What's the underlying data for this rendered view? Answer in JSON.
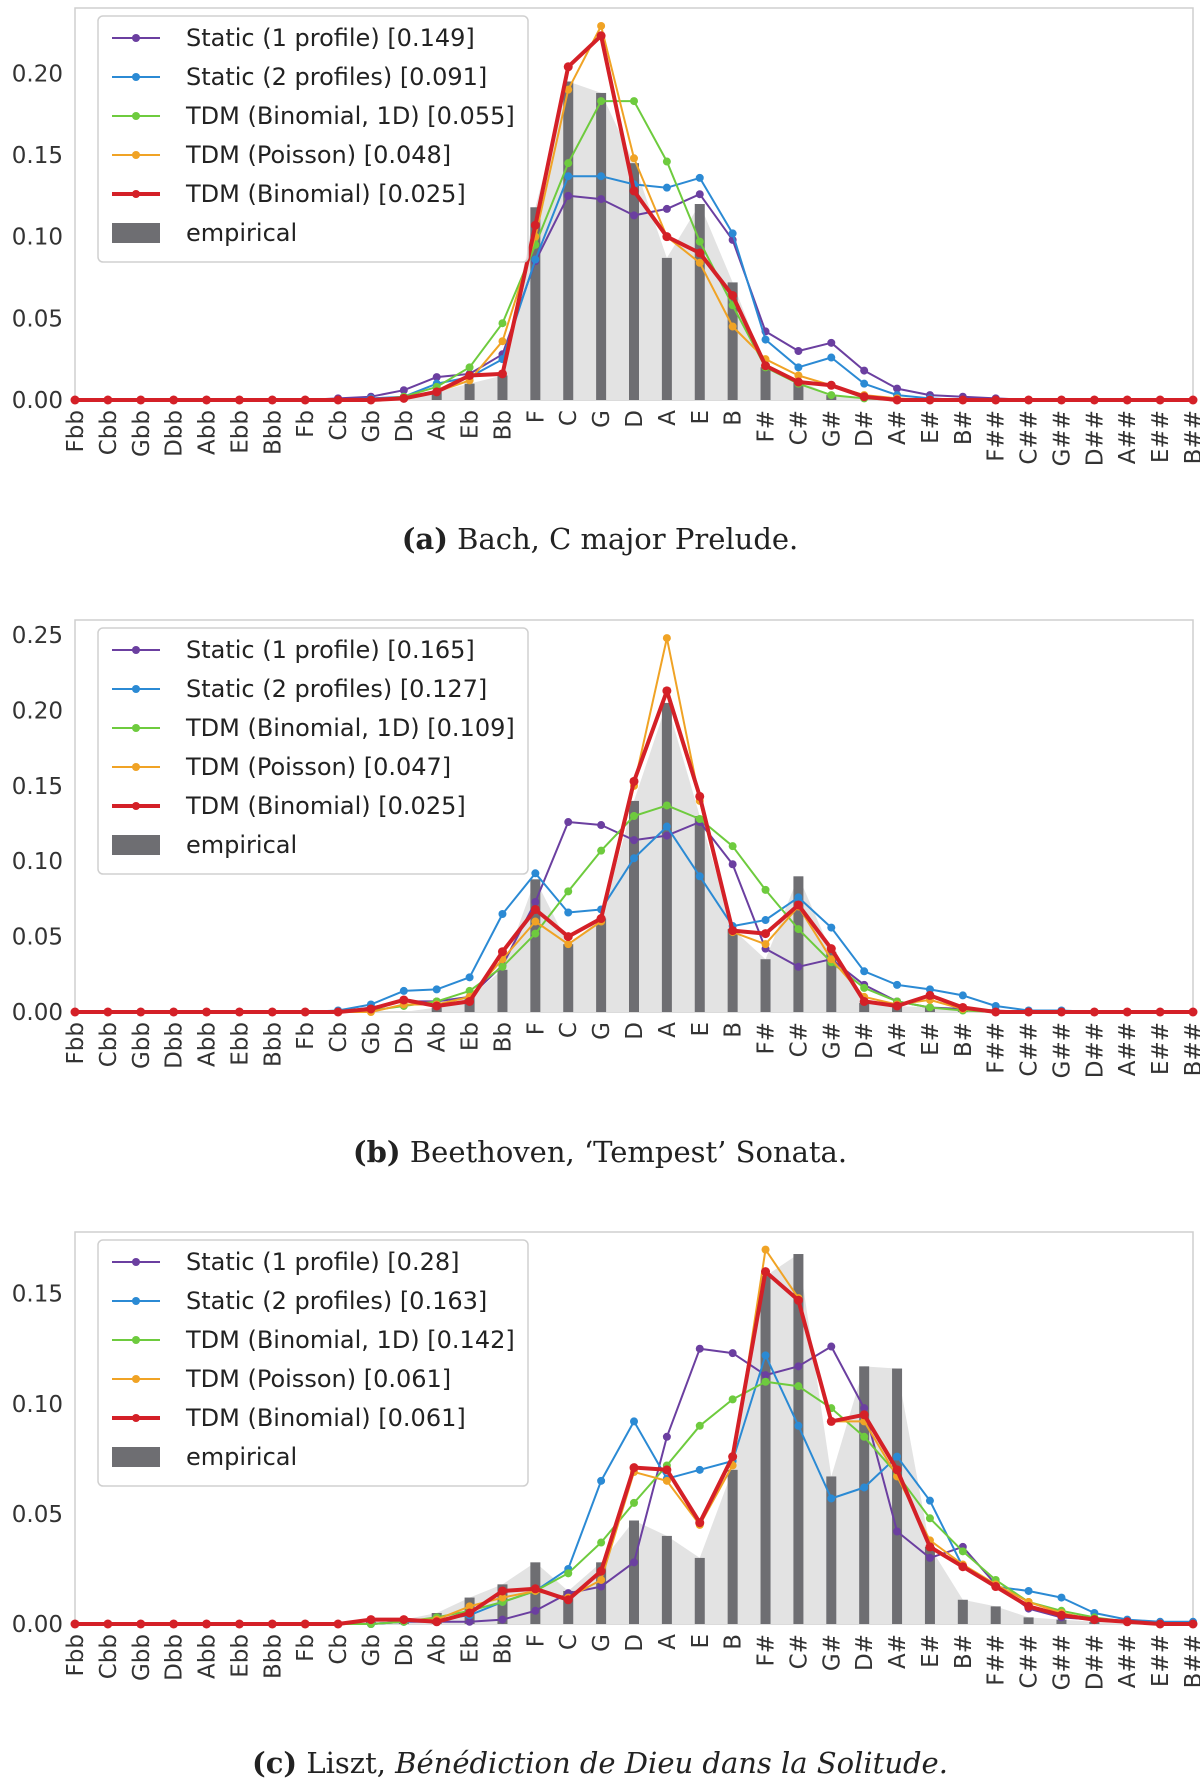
{
  "chart_data": [
    {
      "type": "line",
      "title": "Bach, C major Prelude.",
      "caption_letter": "(a)",
      "caption_text": "Bach, C major Prelude.",
      "caption_italic": "",
      "categories": [
        "Fbb",
        "Cbb",
        "Gbb",
        "Dbb",
        "Abb",
        "Ebb",
        "Bbb",
        "Fb",
        "Cb",
        "Gb",
        "Db",
        "Ab",
        "Eb",
        "Bb",
        "F",
        "C",
        "G",
        "D",
        "A",
        "E",
        "B",
        "F#",
        "C#",
        "G#",
        "D#",
        "A#",
        "E#",
        "B#",
        "F##",
        "C##",
        "G##",
        "D##",
        "A##",
        "E##",
        "B##"
      ],
      "ylim": [
        0,
        0.24
      ],
      "yticks": [
        0.0,
        0.05,
        0.1,
        0.15,
        0.2
      ],
      "ytick_labels": [
        "0.00",
        "0.05",
        "0.10",
        "0.15",
        "0.20"
      ],
      "empirical": {
        "name": "empirical",
        "values": [
          0,
          0,
          0,
          0,
          0,
          0,
          0,
          0,
          0,
          0,
          0,
          0.005,
          0.01,
          0.015,
          0.118,
          0.195,
          0.188,
          0.145,
          0.087,
          0.12,
          0.072,
          0.02,
          0.012,
          0.003,
          0,
          0,
          0,
          0,
          0,
          0,
          0,
          0,
          0,
          0,
          0
        ]
      },
      "series": [
        {
          "name": "Static (1 profile) [0.149]",
          "color": "#6b3fa0",
          "width": 2,
          "values": [
            0,
            0,
            0,
            0,
            0,
            0,
            0,
            0,
            0.001,
            0.002,
            0.006,
            0.014,
            0.016,
            0.028,
            0.085,
            0.125,
            0.123,
            0.113,
            0.117,
            0.126,
            0.098,
            0.042,
            0.03,
            0.035,
            0.018,
            0.007,
            0.003,
            0.002,
            0.001,
            0,
            0,
            0,
            0,
            0,
            0
          ]
        },
        {
          "name": "Static (2 profiles) [0.091]",
          "color": "#2b8ad4",
          "width": 2,
          "values": [
            0,
            0,
            0,
            0,
            0,
            0,
            0,
            0,
            0,
            0.001,
            0.002,
            0.01,
            0.014,
            0.025,
            0.086,
            0.137,
            0.137,
            0.132,
            0.13,
            0.136,
            0.102,
            0.037,
            0.02,
            0.026,
            0.01,
            0.003,
            0.001,
            0,
            0,
            0,
            0,
            0,
            0,
            0,
            0
          ]
        },
        {
          "name": "TDM (Binomial, 1D) [0.055]",
          "color": "#6ecb3e",
          "width": 2,
          "values": [
            0,
            0,
            0,
            0,
            0,
            0,
            0,
            0,
            0,
            0,
            0.002,
            0.008,
            0.02,
            0.047,
            0.095,
            0.145,
            0.183,
            0.183,
            0.146,
            0.097,
            0.058,
            0.02,
            0.01,
            0.003,
            0.001,
            0,
            0,
            0,
            0,
            0,
            0,
            0,
            0,
            0,
            0
          ]
        },
        {
          "name": "TDM (Poisson) [0.048]",
          "color": "#f0a325",
          "width": 2,
          "values": [
            0,
            0,
            0,
            0,
            0,
            0,
            0,
            0,
            0,
            0,
            0.001,
            0.005,
            0.012,
            0.036,
            0.1,
            0.19,
            0.229,
            0.148,
            0.1,
            0.084,
            0.045,
            0.025,
            0.015,
            0.009,
            0.003,
            0.001,
            0,
            0,
            0,
            0,
            0,
            0,
            0,
            0,
            0
          ]
        },
        {
          "name": "TDM (Binomial) [0.025]",
          "color": "#d42027",
          "width": 4,
          "values": [
            0,
            0,
            0,
            0,
            0,
            0,
            0,
            0,
            0,
            0,
            0.001,
            0.005,
            0.015,
            0.016,
            0.107,
            0.204,
            0.223,
            0.128,
            0.1,
            0.09,
            0.064,
            0.021,
            0.011,
            0.009,
            0.002,
            0,
            0,
            0,
            0,
            0,
            0,
            0,
            0,
            0,
            0
          ]
        }
      ]
    },
    {
      "type": "line",
      "title": "Beethoven, 'Tempest' Sonata.",
      "caption_letter": "(b)",
      "caption_text": "Beethoven, ‘Tempest’ Sonata.",
      "caption_italic": "",
      "categories": [
        "Fbb",
        "Cbb",
        "Gbb",
        "Dbb",
        "Abb",
        "Ebb",
        "Bbb",
        "Fb",
        "Cb",
        "Gb",
        "Db",
        "Ab",
        "Eb",
        "Bb",
        "F",
        "C",
        "G",
        "D",
        "A",
        "E",
        "B",
        "F#",
        "C#",
        "G#",
        "D#",
        "A#",
        "E#",
        "B#",
        "F##",
        "C##",
        "G##",
        "D##",
        "A##",
        "E##",
        "B##"
      ],
      "ylim": [
        0,
        0.26
      ],
      "yticks": [
        0.0,
        0.05,
        0.1,
        0.15,
        0.2,
        0.25
      ],
      "ytick_labels": [
        "0.00",
        "0.05",
        "0.10",
        "0.15",
        "0.20",
        "0.25"
      ],
      "empirical": {
        "name": "empirical",
        "values": [
          0,
          0,
          0,
          0,
          0,
          0,
          0,
          0,
          0,
          0,
          0,
          0.003,
          0.01,
          0.028,
          0.088,
          0.045,
          0.062,
          0.14,
          0.205,
          0.13,
          0.055,
          0.035,
          0.09,
          0.04,
          0.006,
          0.004,
          0.003,
          0.001,
          0,
          0,
          0,
          0,
          0,
          0,
          0
        ]
      },
      "series": [
        {
          "name": "Static (1 profile) [0.165]",
          "color": "#6b3fa0",
          "width": 2,
          "values": [
            0,
            0,
            0,
            0,
            0,
            0,
            0,
            0,
            0,
            0.003,
            0.007,
            0.007,
            0.01,
            0.031,
            0.073,
            0.126,
            0.124,
            0.114,
            0.117,
            0.126,
            0.098,
            0.042,
            0.03,
            0.035,
            0.018,
            0.007,
            0.003,
            0.002,
            0.001,
            0,
            0,
            0,
            0,
            0,
            0
          ]
        },
        {
          "name": "Static (2 profiles) [0.127]",
          "color": "#2b8ad4",
          "width": 2,
          "values": [
            0,
            0,
            0,
            0,
            0,
            0,
            0,
            0,
            0.001,
            0.005,
            0.014,
            0.015,
            0.023,
            0.065,
            0.092,
            0.066,
            0.068,
            0.102,
            0.123,
            0.09,
            0.057,
            0.061,
            0.076,
            0.056,
            0.027,
            0.018,
            0.015,
            0.011,
            0.004,
            0.001,
            0.001,
            0,
            0,
            0,
            0
          ]
        },
        {
          "name": "TDM (Binomial, 1D) [0.109]",
          "color": "#6ecb3e",
          "width": 2,
          "values": [
            0,
            0,
            0,
            0,
            0,
            0,
            0,
            0,
            0,
            0.001,
            0.004,
            0.007,
            0.014,
            0.03,
            0.052,
            0.08,
            0.107,
            0.13,
            0.137,
            0.128,
            0.11,
            0.081,
            0.055,
            0.033,
            0.016,
            0.007,
            0.003,
            0.001,
            0,
            0,
            0,
            0,
            0,
            0,
            0
          ]
        },
        {
          "name": "TDM (Poisson) [0.047]",
          "color": "#f0a325",
          "width": 2,
          "values": [
            0,
            0,
            0,
            0,
            0,
            0,
            0,
            0,
            0,
            0,
            0.005,
            0.005,
            0.01,
            0.035,
            0.06,
            0.045,
            0.06,
            0.15,
            0.248,
            0.14,
            0.053,
            0.045,
            0.07,
            0.035,
            0.01,
            0.005,
            0.008,
            0.002,
            0,
            0,
            0,
            0,
            0,
            0,
            0
          ]
        },
        {
          "name": "TDM (Binomial) [0.025]",
          "color": "#d42027",
          "width": 4,
          "values": [
            0,
            0,
            0,
            0,
            0,
            0,
            0,
            0,
            0,
            0.002,
            0.008,
            0.004,
            0.007,
            0.04,
            0.068,
            0.05,
            0.062,
            0.153,
            0.213,
            0.143,
            0.054,
            0.052,
            0.071,
            0.042,
            0.007,
            0.004,
            0.011,
            0.003,
            0,
            0,
            0,
            0,
            0,
            0,
            0
          ]
        }
      ]
    },
    {
      "type": "line",
      "title": "Liszt, Bénédiction de Dieu dans la Solitude.",
      "caption_letter": "(c)",
      "caption_text": "Liszt, ",
      "caption_italic": "Bénédiction de Dieu dans la Solitude.",
      "categories": [
        "Fbb",
        "Cbb",
        "Gbb",
        "Dbb",
        "Abb",
        "Ebb",
        "Bbb",
        "Fb",
        "Cb",
        "Gb",
        "Db",
        "Ab",
        "Eb",
        "Bb",
        "F",
        "C",
        "G",
        "D",
        "A",
        "E",
        "B",
        "F#",
        "C#",
        "G#",
        "D#",
        "A#",
        "E#",
        "B#",
        "F##",
        "C##",
        "G##",
        "D##",
        "A##",
        "E##",
        "B##"
      ],
      "ylim": [
        0,
        0.178
      ],
      "yticks": [
        0.0,
        0.05,
        0.1,
        0.15
      ],
      "ytick_labels": [
        "0.00",
        "0.05",
        "0.10",
        "0.15"
      ],
      "empirical": {
        "name": "empirical",
        "values": [
          0,
          0,
          0,
          0,
          0,
          0,
          0,
          0,
          0,
          0.001,
          0.002,
          0.005,
          0.012,
          0.018,
          0.028,
          0.015,
          0.028,
          0.047,
          0.04,
          0.03,
          0.07,
          0.158,
          0.168,
          0.067,
          0.117,
          0.116,
          0.035,
          0.011,
          0.008,
          0.003,
          0.002,
          0.001,
          0,
          0,
          0
        ]
      },
      "series": [
        {
          "name": "Static (1 profile) [0.28]",
          "color": "#6b3fa0",
          "width": 2,
          "values": [
            0,
            0,
            0,
            0,
            0,
            0,
            0,
            0,
            0,
            0,
            0.001,
            0.001,
            0.001,
            0.002,
            0.006,
            0.014,
            0.017,
            0.028,
            0.085,
            0.125,
            0.123,
            0.113,
            0.117,
            0.126,
            0.098,
            0.042,
            0.03,
            0.035,
            0.018,
            0.007,
            0.003,
            0.002,
            0.001,
            0,
            0
          ]
        },
        {
          "name": "Static (2 profiles) [0.163]",
          "color": "#2b8ad4",
          "width": 2,
          "values": [
            0,
            0,
            0,
            0,
            0,
            0,
            0,
            0,
            0,
            0,
            0.001,
            0.002,
            0.004,
            0.01,
            0.015,
            0.025,
            0.065,
            0.092,
            0.066,
            0.07,
            0.074,
            0.122,
            0.09,
            0.057,
            0.062,
            0.076,
            0.056,
            0.026,
            0.017,
            0.015,
            0.012,
            0.005,
            0.002,
            0.001,
            0.001
          ]
        },
        {
          "name": "TDM (Binomial, 1D) [0.142]",
          "color": "#6ecb3e",
          "width": 2,
          "values": [
            0,
            0,
            0,
            0,
            0,
            0,
            0,
            0,
            0,
            0,
            0.001,
            0.003,
            0.006,
            0.01,
            0.015,
            0.023,
            0.037,
            0.055,
            0.072,
            0.09,
            0.102,
            0.11,
            0.108,
            0.098,
            0.085,
            0.068,
            0.048,
            0.033,
            0.02,
            0.01,
            0.006,
            0.003,
            0.001,
            0,
            0
          ]
        },
        {
          "name": "TDM (Poisson) [0.061]",
          "color": "#f0a325",
          "width": 2,
          "values": [
            0,
            0,
            0,
            0,
            0,
            0,
            0,
            0,
            0,
            0.002,
            0.002,
            0.002,
            0.008,
            0.012,
            0.015,
            0.012,
            0.02,
            0.069,
            0.065,
            0.045,
            0.072,
            0.17,
            0.148,
            0.092,
            0.092,
            0.067,
            0.038,
            0.027,
            0.018,
            0.01,
            0.005,
            0.002,
            0.001,
            0,
            0
          ]
        },
        {
          "name": "TDM (Binomial) [0.061]",
          "color": "#d42027",
          "width": 4,
          "values": [
            0,
            0,
            0,
            0,
            0,
            0,
            0,
            0,
            0,
            0.002,
            0.002,
            0.001,
            0.005,
            0.015,
            0.016,
            0.011,
            0.024,
            0.071,
            0.07,
            0.046,
            0.076,
            0.16,
            0.147,
            0.092,
            0.095,
            0.07,
            0.035,
            0.026,
            0.017,
            0.008,
            0.004,
            0.002,
            0.001,
            0,
            0
          ]
        }
      ]
    }
  ]
}
